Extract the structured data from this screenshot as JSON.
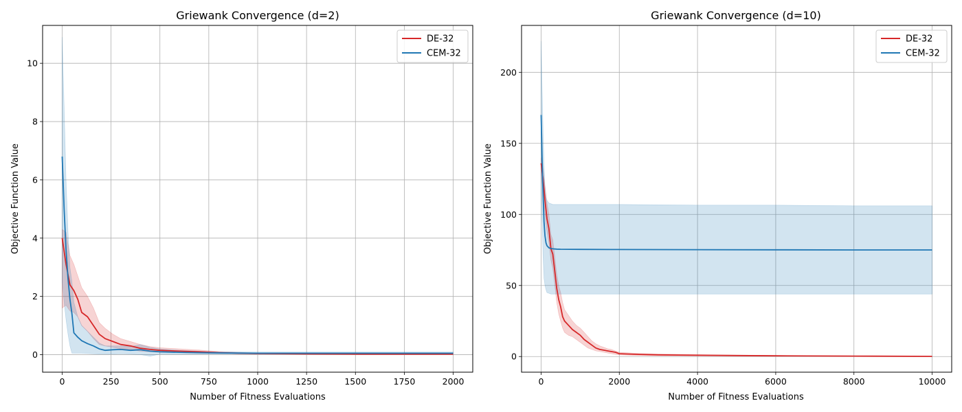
{
  "chart_data": [
    {
      "type": "line",
      "title": "Griewank Convergence (d=2)",
      "xlabel": "Number of Fitness Evaluations",
      "ylabel": "Objective Function Value",
      "xlim": [
        -100,
        2100
      ],
      "ylim": [
        -0.6,
        11.3
      ],
      "xticks": [
        0,
        250,
        500,
        750,
        1000,
        1250,
        1500,
        1750,
        2000
      ],
      "xtick_labels": [
        "0",
        "250",
        "500",
        "750",
        "1000",
        "1250",
        "1500",
        "1750",
        "2000"
      ],
      "yticks": [
        0,
        2,
        4,
        6,
        8,
        10
      ],
      "ytick_labels": [
        "0",
        "2",
        "4",
        "6",
        "8",
        "10"
      ],
      "grid": true,
      "legend_position": "top-right",
      "series": [
        {
          "name": "DE-32",
          "color": "#d62728",
          "x": [
            0,
            20,
            40,
            60,
            80,
            100,
            130,
            160,
            190,
            220,
            260,
            300,
            350,
            400,
            450,
            500,
            600,
            700,
            800,
            900,
            1000,
            1250,
            1500,
            1750,
            2000
          ],
          "y": [
            4.0,
            3.1,
            2.4,
            2.2,
            1.9,
            1.45,
            1.3,
            1.0,
            0.7,
            0.55,
            0.45,
            0.35,
            0.3,
            0.22,
            0.18,
            0.15,
            0.12,
            0.1,
            0.07,
            0.05,
            0.04,
            0.03,
            0.02,
            0.02,
            0.02
          ],
          "lower": [
            1.6,
            1.7,
            1.5,
            1.45,
            1.3,
            1.0,
            0.8,
            0.55,
            0.35,
            0.3,
            0.25,
            0.2,
            0.18,
            0.12,
            0.1,
            0.08,
            0.07,
            0.05,
            0.04,
            0.03,
            0.02,
            0.015,
            0.01,
            0.01,
            0.01
          ],
          "upper": [
            4.3,
            4.2,
            3.4,
            3.1,
            2.7,
            2.3,
            2.0,
            1.6,
            1.1,
            0.9,
            0.7,
            0.55,
            0.45,
            0.35,
            0.28,
            0.24,
            0.2,
            0.16,
            0.11,
            0.08,
            0.06,
            0.05,
            0.04,
            0.03,
            0.03
          ]
        },
        {
          "name": "CEM-32",
          "color": "#1f77b4",
          "x": [
            0,
            10,
            20,
            30,
            40,
            50,
            60,
            80,
            100,
            130,
            160,
            190,
            220,
            260,
            300,
            350,
            400,
            450,
            500,
            600,
            700,
            800,
            1000,
            1250,
            1500,
            1750,
            2000
          ],
          "y": [
            6.8,
            5.0,
            3.6,
            2.6,
            1.9,
            1.4,
            0.75,
            0.6,
            0.48,
            0.38,
            0.3,
            0.2,
            0.15,
            0.17,
            0.18,
            0.15,
            0.17,
            0.12,
            0.1,
            0.08,
            0.07,
            0.06,
            0.05,
            0.05,
            0.05,
            0.05,
            0.05
          ],
          "lower": [
            2.5,
            1.8,
            1.2,
            0.7,
            0.3,
            0.05,
            0.05,
            0.05,
            0.05,
            0.04,
            0.03,
            0.02,
            0.02,
            0.02,
            0.03,
            0.02,
            0.0,
            -0.05,
            0.02,
            0.02,
            0.02,
            0.02,
            0.02,
            0.02,
            0.02,
            0.02,
            0.02
          ],
          "upper": [
            10.9,
            8.5,
            6.0,
            4.2,
            3.0,
            2.5,
            1.8,
            1.3,
            1.0,
            0.8,
            0.6,
            0.4,
            0.3,
            0.3,
            0.3,
            0.28,
            0.35,
            0.25,
            0.2,
            0.15,
            0.12,
            0.1,
            0.09,
            0.09,
            0.09,
            0.09,
            0.09
          ]
        }
      ]
    },
    {
      "type": "line",
      "title": "Griewank Convergence (d=10)",
      "xlabel": "Number of Fitness Evaluations",
      "ylabel": "Objective Function Value",
      "xlim": [
        -500,
        10500
      ],
      "ylim": [
        -11,
        233
      ],
      "xticks": [
        0,
        2000,
        4000,
        6000,
        8000,
        10000
      ],
      "xtick_labels": [
        "0",
        "2000",
        "4000",
        "6000",
        "8000",
        "10000"
      ],
      "yticks": [
        0,
        50,
        100,
        150,
        200
      ],
      "ytick_labels": [
        "0",
        "50",
        "100",
        "150",
        "200"
      ],
      "grid": true,
      "legend_position": "top-right",
      "series": [
        {
          "name": "DE-32",
          "color": "#d62728",
          "x": [
            0,
            50,
            100,
            150,
            200,
            250,
            300,
            350,
            400,
            450,
            500,
            550,
            600,
            700,
            800,
            900,
            1000,
            1100,
            1200,
            1300,
            1400,
            1500,
            1600,
            1700,
            1800,
            1900,
            2000,
            2500,
            3000,
            4000,
            5000,
            6000,
            8000,
            10000
          ],
          "y": [
            136,
            125,
            110,
            97,
            90,
            76,
            72,
            60,
            48,
            40,
            35,
            28,
            25,
            22,
            19,
            17,
            15,
            12,
            10,
            8,
            6,
            5,
            4.5,
            4,
            3.5,
            3,
            2,
            1.5,
            1.2,
            0.9,
            0.7,
            0.5,
            0.3,
            0.1
          ],
          "lower": [
            128,
            115,
            100,
            88,
            80,
            68,
            62,
            50,
            38,
            30,
            25,
            20,
            17,
            15,
            14,
            12,
            10,
            8,
            6,
            5,
            4,
            3.5,
            3,
            2.5,
            2,
            1.5,
            1.2,
            0.8,
            0.6,
            0.5,
            0.4,
            0.3,
            0.2,
            0.05
          ],
          "upper": [
            140,
            132,
            120,
            108,
            100,
            86,
            82,
            70,
            58,
            50,
            45,
            38,
            33,
            29,
            25,
            22,
            20,
            17,
            14,
            11,
            9,
            7.5,
            6.5,
            5.5,
            5,
            4,
            3,
            2.2,
            1.8,
            1.4,
            1.1,
            0.8,
            0.5,
            0.2
          ]
        },
        {
          "name": "CEM-32",
          "color": "#1f77b4",
          "x": [
            0,
            25,
            50,
            75,
            100,
            125,
            150,
            200,
            250,
            300,
            400,
            500,
            1000,
            2000,
            4000,
            6000,
            8000,
            10000
          ],
          "y": [
            170,
            140,
            115,
            95,
            85,
            80,
            78,
            76.5,
            76,
            75.8,
            75.6,
            75.5,
            75.4,
            75.3,
            75.2,
            75.1,
            75.0,
            75.0
          ],
          "lower": [
            120,
            95,
            70,
            55,
            50,
            47,
            45,
            44.5,
            44,
            44,
            44,
            44,
            44,
            44,
            44,
            44,
            44,
            44
          ],
          "upper": [
            222,
            190,
            160,
            135,
            120,
            112,
            110,
            108,
            107.5,
            107,
            107,
            107,
            107,
            107,
            106.5,
            106.5,
            106,
            106
          ]
        }
      ]
    }
  ]
}
